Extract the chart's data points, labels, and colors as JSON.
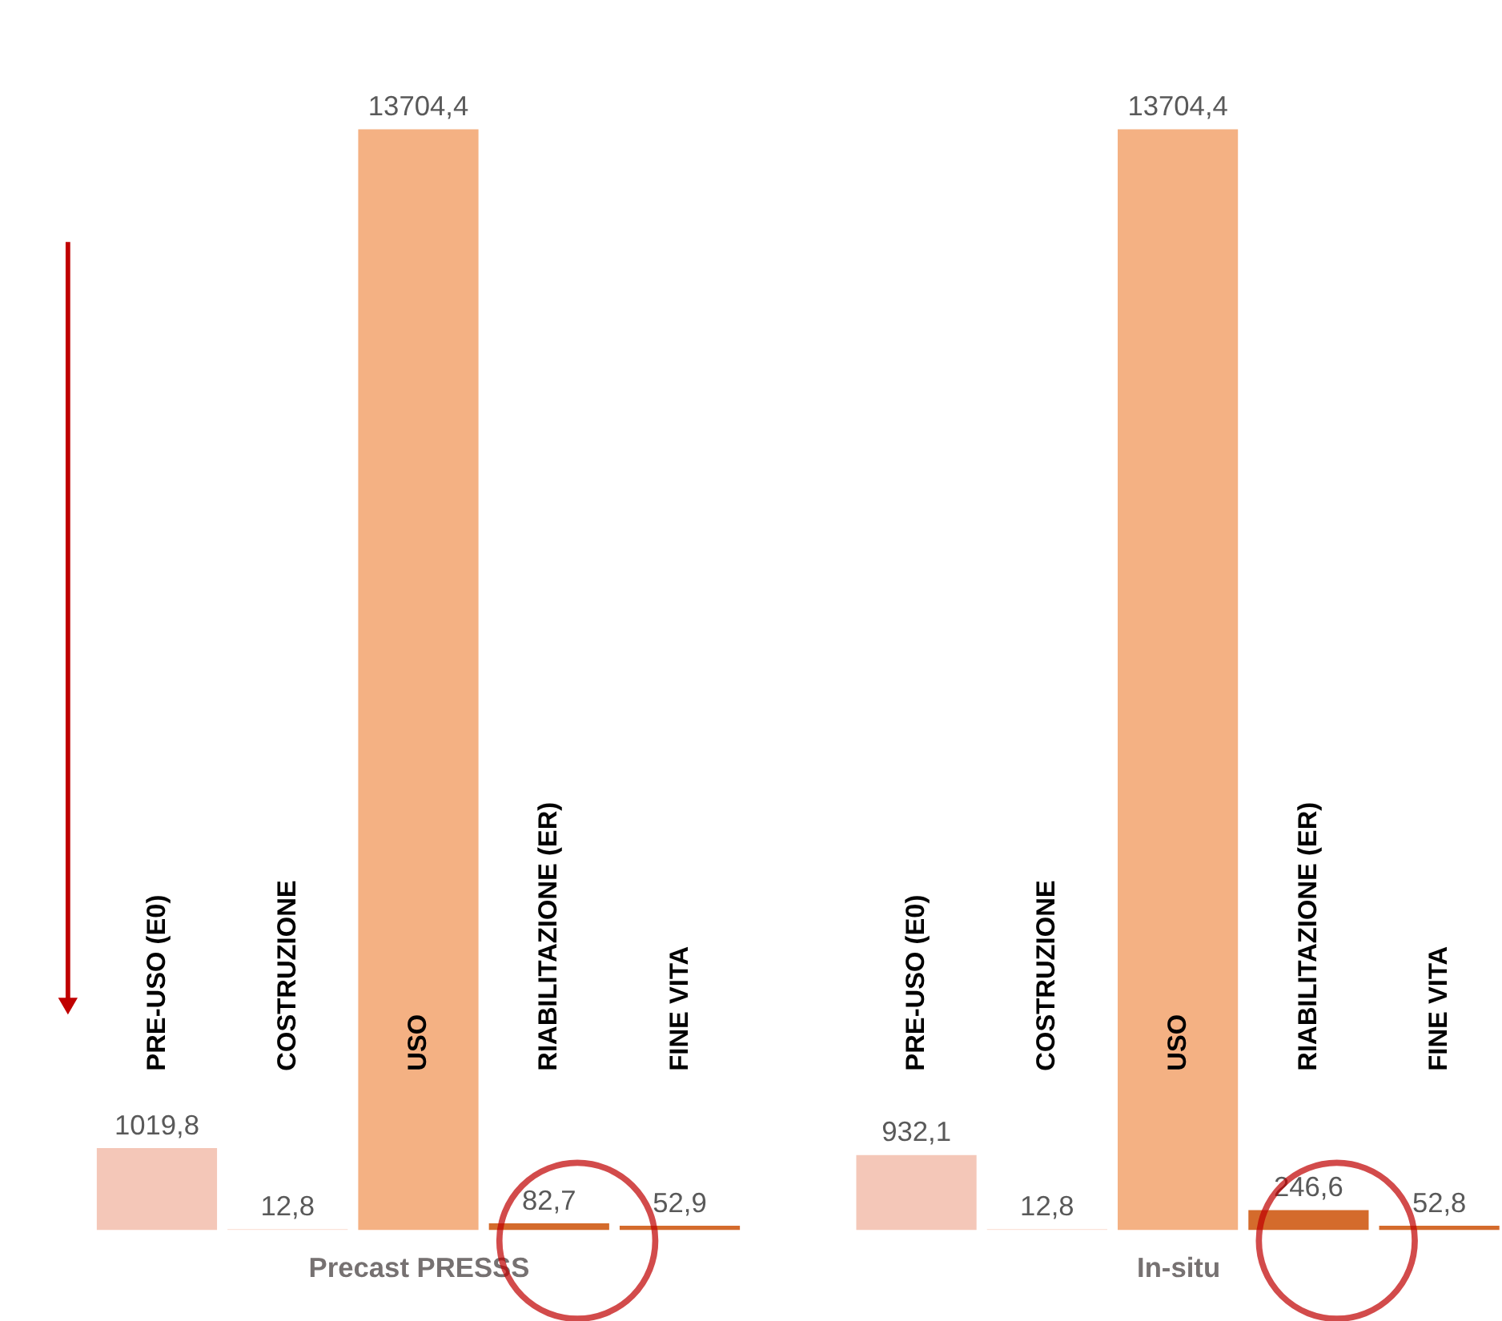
{
  "chart_data": [
    {
      "type": "bar",
      "xlabel": "Precast PRESSS",
      "categories": [
        "PRE-USO (E0)",
        "COSTRUZIONE",
        "USO",
        "RIABILITAZIONE (ER)",
        "FINE VITA"
      ],
      "values": [
        1019.8,
        12.8,
        13704.4,
        82.7,
        52.9
      ],
      "value_labels": [
        "1019,8",
        "12,8",
        "13704,4",
        "82,7",
        "52,9"
      ],
      "colors": [
        "#f4c7b8",
        "#fbe3d9",
        "#f4b183",
        "#d46b2c",
        "#d46b2c"
      ]
    },
    {
      "type": "bar",
      "xlabel": "In-situ",
      "categories": [
        "PRE-USO (E0)",
        "COSTRUZIONE",
        "USO",
        "RIABILITAZIONE (ER)",
        "FINE VITA"
      ],
      "values": [
        932.1,
        12.8,
        13704.4,
        246.6,
        52.8
      ],
      "value_labels": [
        "932,1",
        "12,8",
        "13704,4",
        "246,6",
        "52,8"
      ],
      "colors": [
        "#f4c7b8",
        "#fbe3d9",
        "#f4b183",
        "#d46b2c",
        "#d46b2c"
      ]
    }
  ]
}
